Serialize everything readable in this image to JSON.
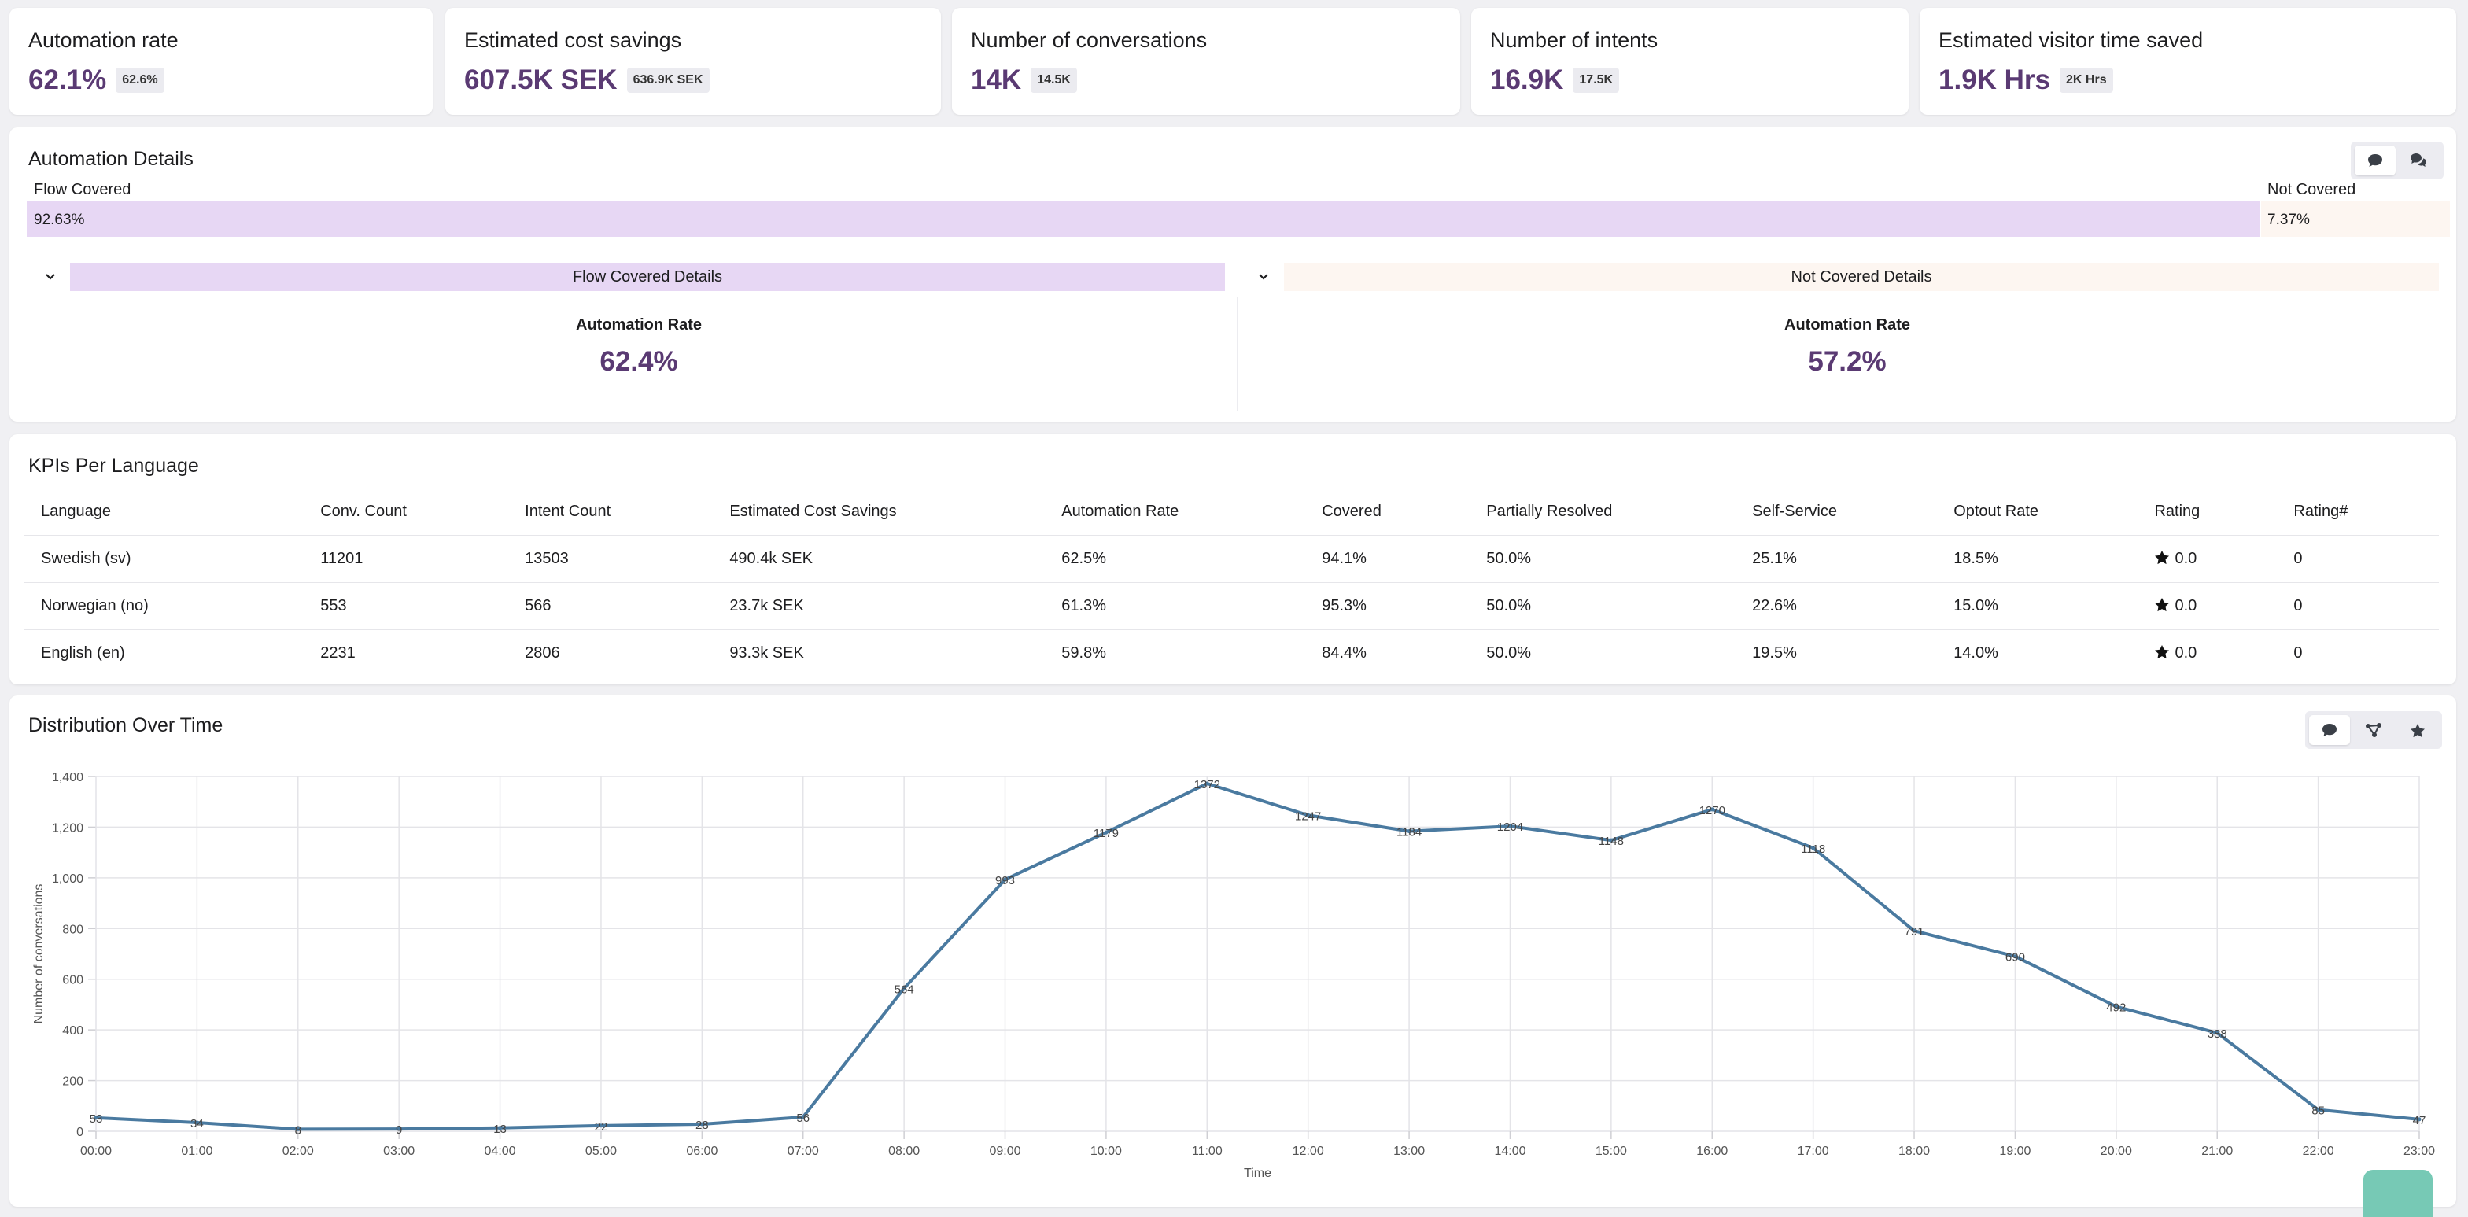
{
  "kpis": [
    {
      "title": "Automation rate",
      "value": "62.1%",
      "badge": "62.6%"
    },
    {
      "title": "Estimated cost savings",
      "value": "607.5K SEK",
      "badge": "636.9K SEK"
    },
    {
      "title": "Number of conversations",
      "value": "14K",
      "badge": "14.5K"
    },
    {
      "title": "Number of intents",
      "value": "16.9K",
      "badge": "17.5K"
    },
    {
      "title": "Estimated visitor time saved",
      "value": "1.9K Hrs",
      "badge": "2K Hrs"
    }
  ],
  "automation_details": {
    "title": "Automation Details",
    "toggle_icons": [
      "chat-bubble-icon",
      "chat-bubbles-icon"
    ],
    "covered_label": "Flow Covered",
    "not_covered_label": "Not Covered",
    "covered_pct": "92.63%",
    "not_covered_pct": "7.37%",
    "covered_fraction": 0.9263,
    "covered_details": {
      "header": "Flow Covered Details",
      "metric_label": "Automation Rate",
      "metric_value": "62.4%"
    },
    "not_covered_details": {
      "header": "Not Covered Details",
      "metric_label": "Automation Rate",
      "metric_value": "57.2%"
    },
    "colors": {
      "covered": "#e7d7f4",
      "not_covered": "#fdf6f1",
      "accent": "#5a3a73"
    }
  },
  "kpis_per_language": {
    "title": "KPIs Per Language",
    "columns": [
      "Language",
      "Conv. Count",
      "Intent Count",
      "Estimated Cost Savings",
      "Automation Rate",
      "Covered",
      "Partially Resolved",
      "Self-Service",
      "Optout Rate",
      "Rating",
      "Rating#"
    ],
    "rows": [
      [
        "Swedish (sv)",
        "11201",
        "13503",
        "490.4k SEK",
        "62.5%",
        "94.1%",
        "50.0%",
        "25.1%",
        "18.5%",
        "0.0",
        "0"
      ],
      [
        "Norwegian (no)",
        "553",
        "566",
        "23.7k SEK",
        "61.3%",
        "95.3%",
        "50.0%",
        "22.6%",
        "15.0%",
        "0.0",
        "0"
      ],
      [
        "English (en)",
        "2231",
        "2806",
        "93.3k SEK",
        "59.8%",
        "84.4%",
        "50.0%",
        "19.5%",
        "14.0%",
        "0.0",
        "0"
      ]
    ]
  },
  "distribution": {
    "title": "Distribution Over Time",
    "toggle_icons": [
      "chat-bubble-icon",
      "flow-icon",
      "star-icon"
    ]
  },
  "chart_data": {
    "type": "line",
    "x": [
      "00:00",
      "01:00",
      "02:00",
      "03:00",
      "04:00",
      "05:00",
      "06:00",
      "07:00",
      "08:00",
      "09:00",
      "10:00",
      "11:00",
      "12:00",
      "13:00",
      "14:00",
      "15:00",
      "16:00",
      "17:00",
      "18:00",
      "19:00",
      "20:00",
      "21:00",
      "22:00",
      "23:00"
    ],
    "values": [
      53,
      34,
      8,
      9,
      13,
      22,
      28,
      56,
      564,
      993,
      1179,
      1372,
      1247,
      1184,
      1204,
      1148,
      1270,
      1118,
      791,
      690,
      492,
      388,
      85,
      47
    ],
    "xlabel": "Time",
    "ylabel": "Number of conversations",
    "ylim": [
      0,
      1400
    ],
    "yticks": [
      "0",
      "200",
      "400",
      "600",
      "800",
      "1,000",
      "1,200",
      "1,400"
    ],
    "grid": true,
    "line_color": "#4a7aa0"
  }
}
